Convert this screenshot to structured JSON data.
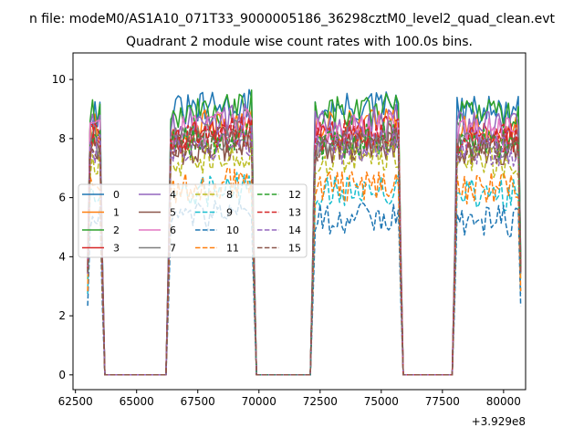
{
  "figure": {
    "suptitle": "n file: modeM0/AS1A10_071T33_9000005186_36298cztM0_level2_quad_clean.evt",
    "title": "Quadrant 2 module wise count rates with 100.0s bins.",
    "offset_label": "+3.929e8"
  },
  "chart_data": {
    "type": "line",
    "title": "Quadrant 2 module wise count rates with 100.0s bins.",
    "xlabel": "",
    "ylabel": "",
    "x_offset": 392900000,
    "xlim": [
      62400,
      80900
    ],
    "ylim": [
      -0.5,
      10.9
    ],
    "x_ticks": [
      62500,
      65000,
      67500,
      70000,
      72500,
      75000,
      77500,
      80000
    ],
    "x_tick_labels": [
      "62500",
      "65000",
      "67500",
      "70000",
      "72500",
      "75000",
      "77500",
      "80000"
    ],
    "y_ticks": [
      0,
      2,
      4,
      6,
      8,
      10
    ],
    "y_tick_labels": [
      "0",
      "2",
      "4",
      "6",
      "8",
      "10"
    ],
    "grid": false,
    "legend_position": "center-left",
    "legend_columns": 4,
    "data_segments": [
      [
        63000,
        63600
      ],
      [
        66300,
        69800
      ],
      [
        72200,
        75800
      ],
      [
        78000,
        80700
      ]
    ],
    "series": [
      {
        "name": "0",
        "color": "#1f77b4",
        "linestyle": "solid",
        "level": 8.9
      },
      {
        "name": "1",
        "color": "#ff7f0e",
        "linestyle": "solid",
        "level": 8.3
      },
      {
        "name": "2",
        "color": "#2ca02c",
        "linestyle": "solid",
        "level": 8.8
      },
      {
        "name": "3",
        "color": "#d62728",
        "linestyle": "solid",
        "level": 8.0
      },
      {
        "name": "4",
        "color": "#9467bd",
        "linestyle": "solid",
        "level": 8.4
      },
      {
        "name": "5",
        "color": "#8c564b",
        "linestyle": "solid",
        "level": 7.6
      },
      {
        "name": "6",
        "color": "#e377c2",
        "linestyle": "solid",
        "level": 8.2
      },
      {
        "name": "7",
        "color": "#7f7f7f",
        "linestyle": "solid",
        "level": 7.9
      },
      {
        "name": "8",
        "color": "#bcbd22",
        "linestyle": "dashed",
        "level": 7.2
      },
      {
        "name": "9",
        "color": "#17becf",
        "linestyle": "dashed",
        "level": 6.1
      },
      {
        "name": "10",
        "color": "#1f77b4",
        "linestyle": "dashed",
        "level": 5.2
      },
      {
        "name": "11",
        "color": "#ff7f0e",
        "linestyle": "dashed",
        "level": 6.3
      },
      {
        "name": "12",
        "color": "#2ca02c",
        "linestyle": "dashed",
        "level": 7.8
      },
      {
        "name": "13",
        "color": "#d62728",
        "linestyle": "dashed",
        "level": 8.0
      },
      {
        "name": "14",
        "color": "#9467bd",
        "linestyle": "dashed",
        "level": 7.6
      },
      {
        "name": "15",
        "color": "#8c564b",
        "linestyle": "dashed",
        "level": 7.7
      }
    ]
  }
}
